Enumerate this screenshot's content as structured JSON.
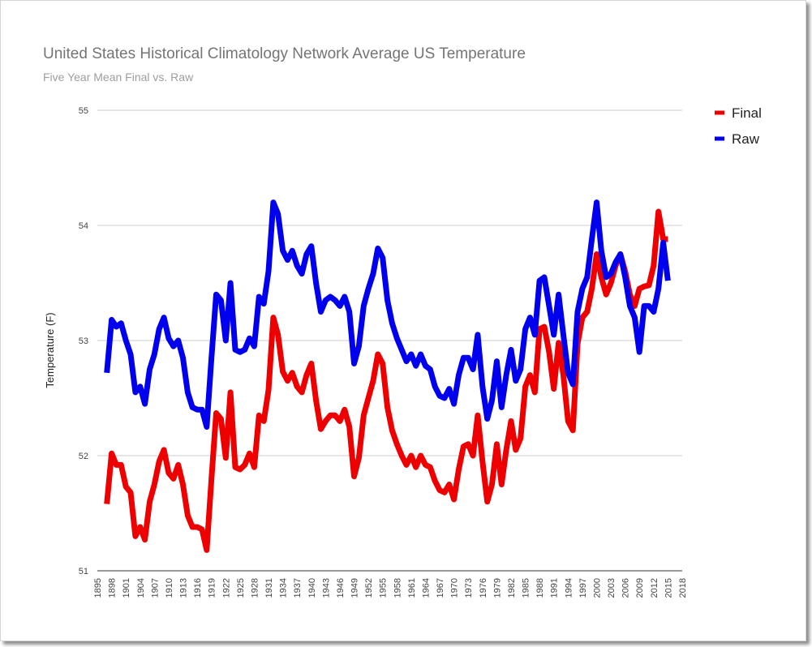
{
  "chart_data": {
    "type": "line",
    "title": "United States Historical Climatology Network Average US Temperature",
    "subtitle": "Five Year Mean  Final vs. Raw",
    "xlabel": "",
    "ylabel": "Temperature (F)",
    "xlim": [
      1895,
      2018
    ],
    "ylim": [
      51,
      55
    ],
    "yticks": [
      "51",
      "52",
      "53",
      "54",
      "55"
    ],
    "xticks": [
      "1895",
      "1898",
      "1901",
      "1904",
      "1907",
      "1910",
      "1913",
      "1916",
      "1919",
      "1922",
      "1925",
      "1928",
      "1931",
      "1934",
      "1937",
      "1940",
      "1943",
      "1946",
      "1949",
      "1952",
      "1955",
      "1958",
      "1961",
      "1964",
      "1967",
      "1970",
      "1973",
      "1976",
      "1979",
      "1982",
      "1985",
      "1988",
      "1991",
      "1994",
      "1997",
      "2000",
      "2003",
      "2006",
      "2009",
      "2012",
      "2015",
      "2018"
    ],
    "grid": true,
    "legend_position": "top-right",
    "x": [
      1897,
      1898,
      1899,
      1900,
      1901,
      1902,
      1903,
      1904,
      1905,
      1906,
      1907,
      1908,
      1909,
      1910,
      1911,
      1912,
      1913,
      1914,
      1915,
      1916,
      1917,
      1918,
      1919,
      1920,
      1921,
      1922,
      1923,
      1924,
      1925,
      1926,
      1927,
      1928,
      1929,
      1930,
      1931,
      1932,
      1933,
      1934,
      1935,
      1936,
      1937,
      1938,
      1939,
      1940,
      1941,
      1942,
      1943,
      1944,
      1945,
      1946,
      1947,
      1948,
      1949,
      1950,
      1951,
      1952,
      1953,
      1954,
      1955,
      1956,
      1957,
      1958,
      1959,
      1960,
      1961,
      1962,
      1963,
      1964,
      1965,
      1966,
      1967,
      1968,
      1969,
      1970,
      1971,
      1972,
      1973,
      1974,
      1975,
      1976,
      1977,
      1978,
      1979,
      1980,
      1981,
      1982,
      1983,
      1984,
      1985,
      1986,
      1987,
      1988,
      1989,
      1990,
      1991,
      1992,
      1993,
      1994,
      1995,
      1996,
      1997,
      1998,
      1999,
      2000,
      2001,
      2002,
      2003,
      2004,
      2005,
      2006,
      2007,
      2008,
      2009,
      2010,
      2011,
      2012,
      2013,
      2014,
      2015
    ],
    "series": [
      {
        "name": "Final",
        "color": "#ee0000",
        "values": [
          51.58,
          52.02,
          51.92,
          51.92,
          51.73,
          51.68,
          51.3,
          51.38,
          51.27,
          51.6,
          51.75,
          51.95,
          52.05,
          51.85,
          51.8,
          51.92,
          51.75,
          51.48,
          51.38,
          51.38,
          51.36,
          51.18,
          51.8,
          52.37,
          52.32,
          51.98,
          52.55,
          51.9,
          51.88,
          51.92,
          52.02,
          51.9,
          52.35,
          52.3,
          52.57,
          53.2,
          53.05,
          52.73,
          52.65,
          52.72,
          52.6,
          52.55,
          52.7,
          52.8,
          52.48,
          52.23,
          52.3,
          52.35,
          52.35,
          52.3,
          52.4,
          52.25,
          51.82,
          51.98,
          52.35,
          52.5,
          52.65,
          52.88,
          52.8,
          52.42,
          52.22,
          52.1,
          52.0,
          51.92,
          52.0,
          51.9,
          52.0,
          51.92,
          51.9,
          51.78,
          51.7,
          51.68,
          51.75,
          51.62,
          51.88,
          52.08,
          52.1,
          52.0,
          52.35,
          51.95,
          51.6,
          51.75,
          52.1,
          51.75,
          52.05,
          52.3,
          52.05,
          52.15,
          52.6,
          52.7,
          52.55,
          53.1,
          53.12,
          52.9,
          52.58,
          52.98,
          52.7,
          52.3,
          52.22,
          52.97,
          53.2,
          53.25,
          53.45,
          53.75,
          53.55,
          53.4,
          53.5,
          53.65,
          53.75,
          53.6,
          53.4,
          53.3,
          53.45,
          53.47,
          53.48,
          53.65,
          54.12,
          53.88,
          53.88
        ]
      },
      {
        "name": "Raw",
        "color": "#0000ee",
        "values": [
          52.72,
          53.18,
          53.12,
          53.15,
          53.0,
          52.88,
          52.55,
          52.6,
          52.45,
          52.75,
          52.88,
          53.1,
          53.2,
          53.02,
          52.95,
          53.0,
          52.85,
          52.55,
          52.42,
          52.4,
          52.4,
          52.25,
          52.85,
          53.4,
          53.35,
          53.0,
          53.5,
          52.92,
          52.9,
          52.92,
          53.02,
          52.95,
          53.38,
          53.32,
          53.6,
          54.2,
          54.1,
          53.78,
          53.7,
          53.78,
          53.65,
          53.58,
          53.75,
          53.82,
          53.5,
          53.25,
          53.35,
          53.38,
          53.35,
          53.3,
          53.38,
          53.25,
          52.8,
          52.95,
          53.3,
          53.45,
          53.58,
          53.8,
          53.72,
          53.35,
          53.15,
          53.02,
          52.92,
          52.82,
          52.88,
          52.78,
          52.88,
          52.78,
          52.75,
          52.6,
          52.52,
          52.5,
          52.58,
          52.45,
          52.7,
          52.85,
          52.85,
          52.75,
          53.05,
          52.6,
          52.32,
          52.48,
          52.82,
          52.42,
          52.7,
          52.92,
          52.65,
          52.75,
          53.1,
          53.2,
          53.05,
          53.52,
          53.55,
          53.3,
          53.05,
          53.4,
          53.05,
          52.72,
          52.62,
          53.25,
          53.45,
          53.55,
          53.88,
          54.2,
          53.78,
          53.55,
          53.58,
          53.68,
          53.75,
          53.55,
          53.3,
          53.2,
          52.9,
          53.3,
          53.3,
          53.25,
          53.45,
          53.85,
          53.52
        ]
      }
    ]
  }
}
